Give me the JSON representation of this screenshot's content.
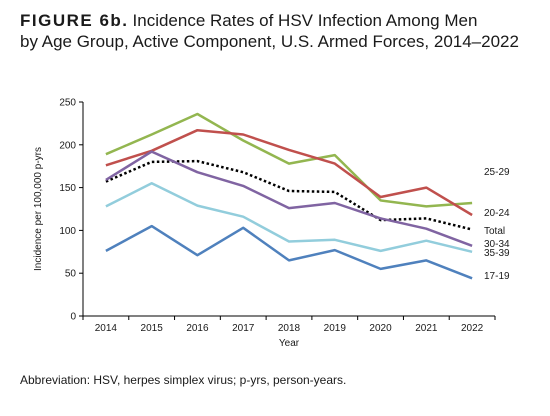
{
  "figure": {
    "label": "FIGURE 6b.",
    "title_line1": "Incidence Rates of HSV Infection Among Men",
    "title_line2": "by Age Group, Active Component, U.S. Armed Forces, 2014–2022"
  },
  "footnote": "Abbreviation: HSV, herpes simplex virus; p-yrs, person-years.",
  "chart_data": {
    "type": "line",
    "x": [
      "2014",
      "2015",
      "2016",
      "2017",
      "2018",
      "2019",
      "2020",
      "2021",
      "2022"
    ],
    "xlabel": "Year",
    "ylabel": "Incidence per 100,000 p-yrs",
    "ylim": [
      0,
      250
    ],
    "yticks": [
      "0",
      "50",
      "100",
      "150",
      "200",
      "250"
    ],
    "grid": false,
    "legend": "right-end labels",
    "series": [
      {
        "name": "25-29",
        "color": "#93b650",
        "style": "solid",
        "values": [
          189,
          212,
          236,
          205,
          178,
          188,
          135,
          128,
          132
        ]
      },
      {
        "name": "20-24",
        "color": "#c0504d",
        "style": "solid",
        "values": [
          176,
          193,
          217,
          212,
          194,
          178,
          139,
          150,
          118
        ]
      },
      {
        "name": "Total",
        "color": "#000000",
        "style": "dotted",
        "values": [
          157,
          180,
          181,
          168,
          146,
          145,
          112,
          114,
          101
        ]
      },
      {
        "name": "30-34",
        "color": "#8064a2",
        "style": "solid",
        "values": [
          159,
          192,
          168,
          152,
          126,
          132,
          114,
          102,
          82
        ]
      },
      {
        "name": "35-39",
        "color": "#92cddc",
        "style": "solid",
        "values": [
          128,
          155,
          129,
          116,
          87,
          89,
          76,
          88,
          75
        ]
      },
      {
        "name": "17-19",
        "color": "#4f81bd",
        "style": "solid",
        "values": [
          76,
          105,
          71,
          103,
          65,
          77,
          55,
          65,
          44
        ]
      }
    ]
  }
}
